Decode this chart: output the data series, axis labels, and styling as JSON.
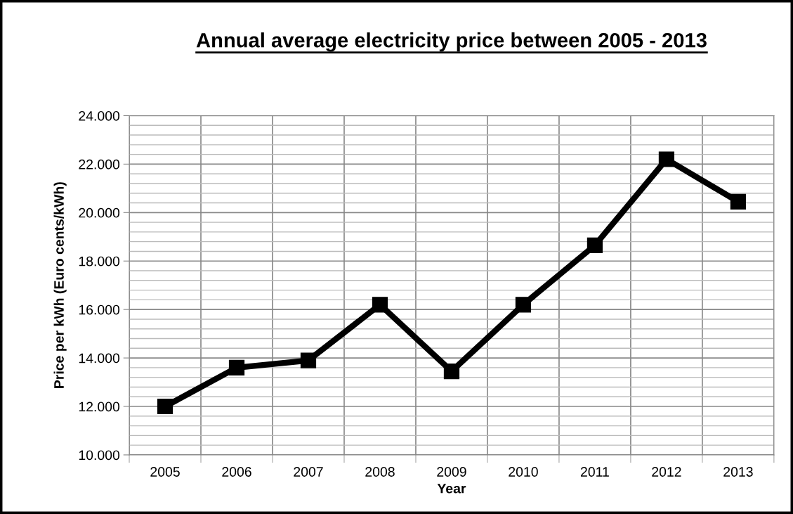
{
  "chart_data": {
    "type": "line",
    "title": "Annual average electricity price between 2005 - 2013",
    "xlabel": "Year",
    "ylabel": "Price per kWh (Euro cents/kWh)",
    "categories": [
      "2005",
      "2006",
      "2007",
      "2008",
      "2009",
      "2010",
      "2011",
      "2012",
      "2013"
    ],
    "series": [
      {
        "color": "#000000",
        "values": [
          12.0,
          13.6,
          13.9,
          16.2,
          13.45,
          16.2,
          18.65,
          22.2,
          20.45
        ]
      }
    ],
    "ylim": [
      10,
      24
    ],
    "yticks": [
      {
        "value": 10,
        "label": "10.000"
      },
      {
        "value": 12,
        "label": "12.000"
      },
      {
        "value": 14,
        "label": "14.000"
      },
      {
        "value": 16,
        "label": "16.000"
      },
      {
        "value": 18,
        "label": "18.000"
      },
      {
        "value": 20,
        "label": "20.000"
      },
      {
        "value": 22,
        "label": "22.000"
      },
      {
        "value": 24,
        "label": "24.000"
      }
    ],
    "grid": true,
    "marker": "square",
    "line_style": "solid"
  }
}
